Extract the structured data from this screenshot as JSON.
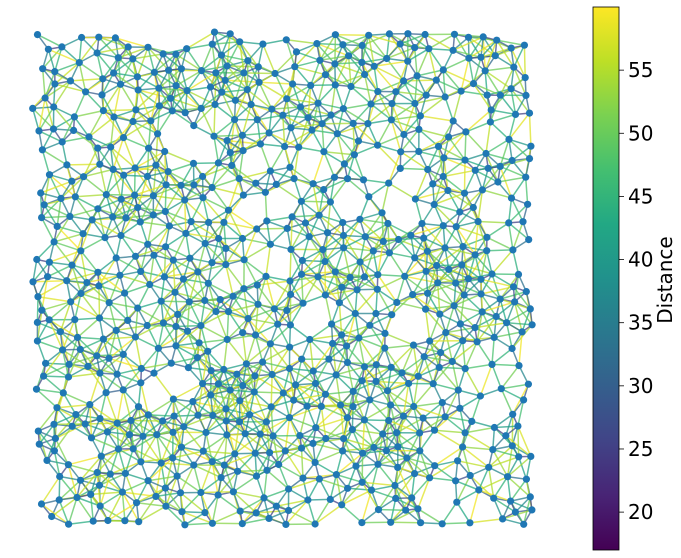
{
  "graph": {
    "node_color": "#1f77b4",
    "edge_colormap": "viridis",
    "seed": 7,
    "node_count": 720
  },
  "colorbar": {
    "label": "Distance",
    "vmin": 17,
    "vmax": 60,
    "ticks": [
      {
        "value": 20,
        "label": "20"
      },
      {
        "value": 25,
        "label": "25"
      },
      {
        "value": 30,
        "label": "30"
      },
      {
        "value": 35,
        "label": "35"
      },
      {
        "value": 40,
        "label": "40"
      },
      {
        "value": 45,
        "label": "45"
      },
      {
        "value": 50,
        "label": "50"
      },
      {
        "value": 55,
        "label": "55"
      }
    ]
  }
}
